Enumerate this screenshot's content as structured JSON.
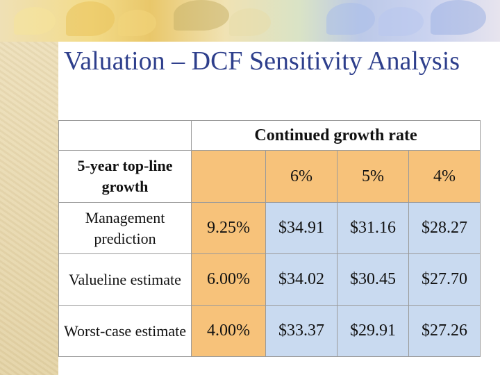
{
  "slide": {
    "title": "Valuation – DCF Sensitivity Analysis"
  },
  "table": {
    "super_header": "Continued growth rate",
    "row_header_label": "5-year top-line growth",
    "columns": [
      "6%",
      "5%",
      "4%"
    ],
    "rows": [
      {
        "label": "Management prediction",
        "rate": "9.25%",
        "values": [
          "$34.91",
          "$31.16",
          "$28.27"
        ]
      },
      {
        "label": "Valueline estimate",
        "rate": "6.00%",
        "values": [
          "$34.02",
          "$30.45",
          "$27.70"
        ]
      },
      {
        "label": "Worst-case estimate",
        "rate": "4.00%",
        "values": [
          "$33.37",
          "$29.91",
          "$27.26"
        ]
      }
    ]
  },
  "colors": {
    "title": "#2e3f8c",
    "header_fill": "#f7c27a",
    "value_fill": "#c9daf0"
  }
}
